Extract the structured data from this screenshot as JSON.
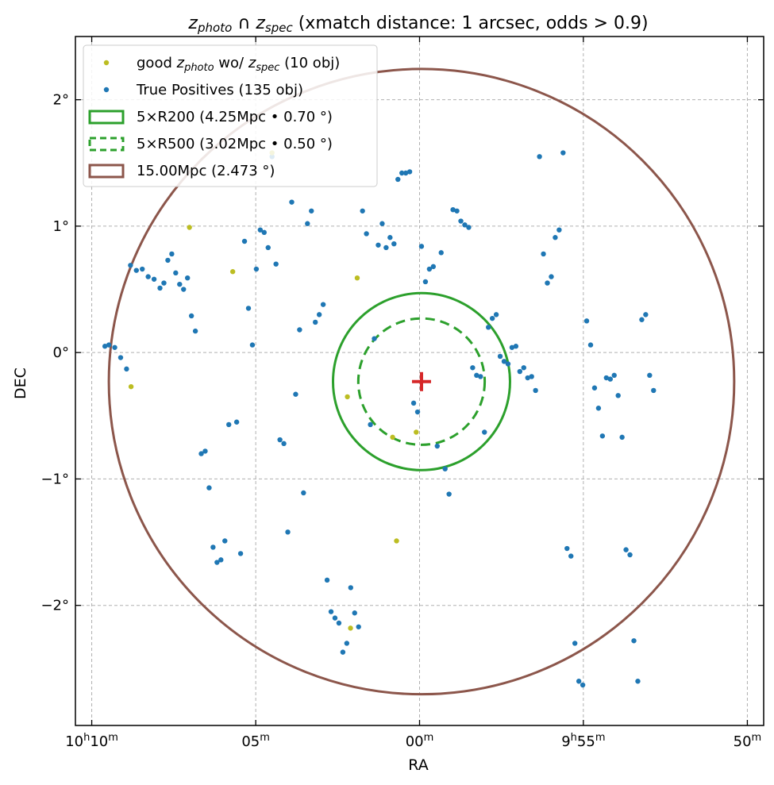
{
  "chart_data": {
    "type": "scatter",
    "title_parts": [
      {
        "text": "z",
        "italic": true
      },
      {
        "text": "photo",
        "italic": true,
        "sub": true
      },
      {
        "text": " ∩ ",
        "italic": false
      },
      {
        "text": "z",
        "italic": true
      },
      {
        "text": "spec",
        "italic": true,
        "sub": true
      },
      {
        "text": " (xmatch distance: 1 arcsec, odds > 0.9)",
        "italic": false
      }
    ],
    "xlabel": "RA",
    "ylabel": "DEC",
    "xlim": [
      10.175,
      9.825
    ],
    "ylim": [
      -2.95,
      2.5
    ],
    "grid": true,
    "legend_position": "top-left",
    "x_ticks": [
      {
        "value": 10.1667,
        "main": "10",
        "sup1": "h",
        "mid": "10",
        "sup2": "m"
      },
      {
        "value": 10.0833,
        "main": "",
        "sup1": "",
        "mid": "05",
        "sup2": "m"
      },
      {
        "value": 10.0,
        "main": "",
        "sup1": "",
        "mid": "00",
        "sup2": "m"
      },
      {
        "value": 9.9167,
        "main": "9",
        "sup1": "h",
        "mid": "55",
        "sup2": "m"
      },
      {
        "value": 9.8333,
        "main": "",
        "sup1": "",
        "mid": "50",
        "sup2": "m"
      }
    ],
    "y_ticks": [
      {
        "value": 2,
        "label": "2°"
      },
      {
        "value": 1,
        "label": "1°"
      },
      {
        "value": 0,
        "label": "0°"
      },
      {
        "value": -1,
        "label": "−1°"
      },
      {
        "value": -2,
        "label": "−2°"
      }
    ],
    "center": {
      "x": 9.999,
      "y": -0.23
    },
    "circles": [
      {
        "name": "5×R200 (4.25Mpc • 0.70 °)",
        "radius_deg": 0.7,
        "color": "#2ca02c",
        "dashed": false
      },
      {
        "name": "5×R500 (3.02Mpc • 0.50 °)",
        "radius_deg": 0.5,
        "color": "#2ca02c",
        "dashed": true
      },
      {
        "name": "15.00Mpc (2.473 °)",
        "radius_deg": 2.473,
        "color": "#8c564b",
        "dashed": false
      }
    ],
    "series": [
      {
        "name_parts": [
          {
            "text": "good ",
            "italic": false
          },
          {
            "text": "z",
            "italic": true
          },
          {
            "text": "photo",
            "italic": true,
            "sub": true
          },
          {
            "text": " wo/ ",
            "italic": false
          },
          {
            "text": "z",
            "italic": true
          },
          {
            "text": "spec",
            "italic": true,
            "sub": true
          },
          {
            "text": " (10 obj)",
            "italic": false
          }
        ],
        "color": "#bcbd22",
        "points": [
          [
            10.117,
            0.99
          ],
          [
            10.095,
            0.64
          ],
          [
            10.1467,
            -0.27
          ],
          [
            10.075,
            1.58
          ],
          [
            10.0317,
            0.59
          ],
          [
            10.0367,
            -0.35
          ],
          [
            10.0137,
            -0.67
          ],
          [
            10.0117,
            -1.49
          ],
          [
            10.0017,
            -0.63
          ],
          [
            10.0351,
            -2.18
          ]
        ]
      },
      {
        "name": "True Positives (135 obj)",
        "color": "#1f77b4",
        "points": [
          [
            10.16,
            0.05
          ],
          [
            10.158,
            0.06
          ],
          [
            10.155,
            0.04
          ],
          [
            10.152,
            -0.04
          ],
          [
            10.149,
            -0.13
          ],
          [
            10.147,
            0.69
          ],
          [
            10.144,
            0.65
          ],
          [
            10.141,
            0.66
          ],
          [
            10.138,
            0.6
          ],
          [
            10.135,
            0.58
          ],
          [
            10.132,
            0.51
          ],
          [
            10.13,
            0.55
          ],
          [
            10.128,
            0.73
          ],
          [
            10.126,
            0.78
          ],
          [
            10.124,
            0.63
          ],
          [
            10.122,
            0.54
          ],
          [
            10.12,
            0.5
          ],
          [
            10.118,
            0.59
          ],
          [
            10.116,
            0.29
          ],
          [
            10.114,
            0.17
          ],
          [
            10.111,
            -0.8
          ],
          [
            10.109,
            -0.78
          ],
          [
            10.107,
            -1.07
          ],
          [
            10.105,
            -1.54
          ],
          [
            10.103,
            -1.66
          ],
          [
            10.101,
            -1.64
          ],
          [
            10.099,
            -1.49
          ],
          [
            10.097,
            -0.57
          ],
          [
            10.093,
            -0.55
          ],
          [
            10.091,
            -1.59
          ],
          [
            10.089,
            0.88
          ],
          [
            10.087,
            0.35
          ],
          [
            10.085,
            0.06
          ],
          [
            10.083,
            0.66
          ],
          [
            10.081,
            0.97
          ],
          [
            10.079,
            0.95
          ],
          [
            10.077,
            0.83
          ],
          [
            10.075,
            1.55
          ],
          [
            10.073,
            0.7
          ],
          [
            10.071,
            -0.69
          ],
          [
            10.069,
            -0.72
          ],
          [
            10.067,
            -1.42
          ],
          [
            10.065,
            1.19
          ],
          [
            10.063,
            -0.33
          ],
          [
            10.061,
            0.18
          ],
          [
            10.059,
            -1.11
          ],
          [
            10.057,
            1.02
          ],
          [
            10.055,
            1.12
          ],
          [
            10.053,
            0.24
          ],
          [
            10.051,
            0.3
          ],
          [
            10.049,
            0.38
          ],
          [
            10.047,
            -1.8
          ],
          [
            10.045,
            -2.05
          ],
          [
            10.043,
            -2.1
          ],
          [
            10.041,
            -2.14
          ],
          [
            10.039,
            -2.37
          ],
          [
            10.037,
            -2.3
          ],
          [
            10.035,
            -1.86
          ],
          [
            10.033,
            -2.06
          ],
          [
            10.031,
            -2.17
          ],
          [
            10.029,
            1.12
          ],
          [
            10.027,
            0.94
          ],
          [
            10.025,
            -0.57
          ],
          [
            10.023,
            0.11
          ],
          [
            10.021,
            0.85
          ],
          [
            10.019,
            1.02
          ],
          [
            10.017,
            0.83
          ],
          [
            10.015,
            0.91
          ],
          [
            10.013,
            0.86
          ],
          [
            10.011,
            1.37
          ],
          [
            10.009,
            1.42
          ],
          [
            10.007,
            1.42
          ],
          [
            10.005,
            1.43
          ],
          [
            10.003,
            -0.4
          ],
          [
            10.001,
            -0.47
          ],
          [
            9.999,
            0.84
          ],
          [
            9.997,
            0.56
          ],
          [
            9.995,
            0.66
          ],
          [
            9.993,
            0.68
          ],
          [
            9.991,
            -0.74
          ],
          [
            9.989,
            0.79
          ],
          [
            9.987,
            -0.92
          ],
          [
            9.985,
            -1.12
          ],
          [
            9.983,
            1.13
          ],
          [
            9.981,
            1.12
          ],
          [
            9.979,
            1.04
          ],
          [
            9.977,
            1.01
          ],
          [
            9.975,
            0.99
          ],
          [
            9.973,
            -0.12
          ],
          [
            9.971,
            -0.18
          ],
          [
            9.969,
            -0.19
          ],
          [
            9.967,
            -0.63
          ],
          [
            9.965,
            0.2
          ],
          [
            9.963,
            0.27
          ],
          [
            9.961,
            0.3
          ],
          [
            9.959,
            -0.03
          ],
          [
            9.957,
            -0.07
          ],
          [
            9.955,
            -0.09
          ],
          [
            9.953,
            0.04
          ],
          [
            9.951,
            0.05
          ],
          [
            9.949,
            -0.15
          ],
          [
            9.947,
            -0.12
          ],
          [
            9.945,
            -0.2
          ],
          [
            9.943,
            -0.19
          ],
          [
            9.941,
            -0.3
          ],
          [
            9.939,
            1.55
          ],
          [
            9.937,
            0.78
          ],
          [
            9.935,
            0.55
          ],
          [
            9.933,
            0.6
          ],
          [
            9.931,
            0.91
          ],
          [
            9.929,
            0.97
          ],
          [
            9.927,
            1.58
          ],
          [
            9.925,
            -1.55
          ],
          [
            9.923,
            -1.61
          ],
          [
            9.921,
            -2.3
          ],
          [
            9.919,
            -2.6
          ],
          [
            9.917,
            -2.63
          ],
          [
            9.915,
            0.25
          ],
          [
            9.913,
            0.06
          ],
          [
            9.911,
            -0.28
          ],
          [
            9.909,
            -0.44
          ],
          [
            9.907,
            -0.66
          ],
          [
            9.905,
            -0.2
          ],
          [
            9.903,
            -0.21
          ],
          [
            9.901,
            -0.18
          ],
          [
            9.899,
            -0.34
          ],
          [
            9.897,
            -0.67
          ],
          [
            9.895,
            -1.56
          ],
          [
            9.893,
            -1.6
          ],
          [
            9.891,
            -2.28
          ],
          [
            9.889,
            -2.6
          ],
          [
            9.887,
            0.26
          ],
          [
            9.885,
            0.3
          ],
          [
            9.883,
            -0.18
          ],
          [
            9.881,
            -0.3
          ]
        ]
      }
    ]
  }
}
